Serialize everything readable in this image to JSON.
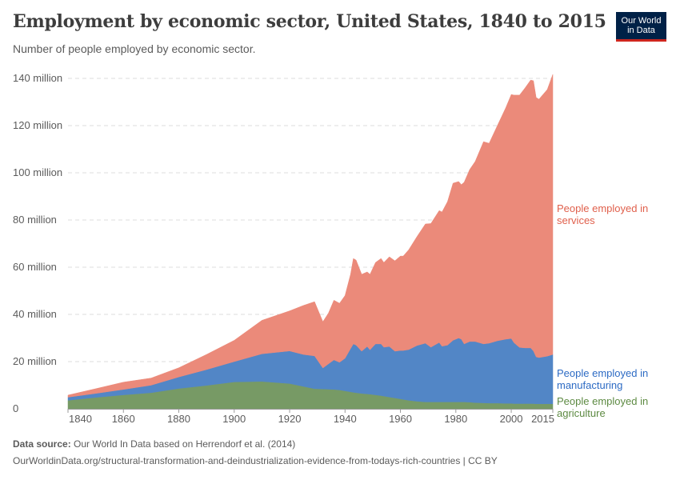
{
  "header": {
    "title": "Employment by economic sector, United States, 1840 to 2015",
    "subtitle": "Number of people employed by economic sector.",
    "logo_text": "Our World in Data"
  },
  "footer": {
    "source_label": "Data source:",
    "source_text": "Our World In Data based on Herrendorf et al. (2014)",
    "url_text": "OurWorldinData.org/structural-transformation-and-deindustrialization-evidence-from-todays-rich-countries | CC BY"
  },
  "chart_data": {
    "type": "area",
    "stacked": true,
    "title": "Employment by economic sector, United States, 1840 to 2015",
    "subtitle": "Number of people employed by economic sector.",
    "xlim": [
      1840,
      2015
    ],
    "ylim": [
      0,
      140000000
    ],
    "grid": "horizontal dashed",
    "legend": "right, inline labels",
    "x_ticks": [
      "1840",
      "1860",
      "1880",
      "1900",
      "1920",
      "1940",
      "1960",
      "1980",
      "2000",
      "2015"
    ],
    "y_ticks": [
      "0",
      "20 million",
      "40 million",
      "60 million",
      "80 million",
      "100 million",
      "120 million",
      "140 million"
    ],
    "x": [
      1840,
      1850,
      1860,
      1870,
      1880,
      1890,
      1900,
      1910,
      1920,
      1925,
      1929,
      1932,
      1934,
      1936,
      1938,
      1940,
      1942,
      1943,
      1944,
      1946,
      1948,
      1949,
      1951,
      1953,
      1954,
      1956,
      1958,
      1960,
      1961,
      1963,
      1966,
      1969,
      1971,
      1974,
      1975,
      1977,
      1979,
      1981,
      1982,
      1983,
      1985,
      1987,
      1990,
      1992,
      1995,
      1998,
      2000,
      2001,
      2003,
      2005,
      2007,
      2008,
      2009,
      2010,
      2013,
      2015
    ],
    "unit": "million people",
    "series": [
      {
        "name": "People employed in agriculture",
        "color": "#779a65",
        "label_color": "#5d8a42",
        "values": [
          3.6,
          4.8,
          5.9,
          6.8,
          8.6,
          9.9,
          11.4,
          11.6,
          10.7,
          9.5,
          8.5,
          8.4,
          8.3,
          8.2,
          8.0,
          7.6,
          7.2,
          7.0,
          6.8,
          6.5,
          6.3,
          6.2,
          5.9,
          5.6,
          5.4,
          5.0,
          4.6,
          4.2,
          4.0,
          3.6,
          3.2,
          2.9,
          2.9,
          2.9,
          2.9,
          2.9,
          2.9,
          2.9,
          2.9,
          2.9,
          2.8,
          2.6,
          2.5,
          2.4,
          2.4,
          2.3,
          2.3,
          2.2,
          2.2,
          2.2,
          2.2,
          2.2,
          2.1,
          2.1,
          2.1,
          2.1
        ]
      },
      {
        "name": "People employed in manufacturing",
        "color": "#5286c6",
        "label_color": "#2d6bc4",
        "values": [
          1.3,
          1.7,
          2.3,
          3.2,
          4.9,
          6.7,
          8.6,
          11.7,
          13.8,
          13.5,
          13.9,
          8.9,
          10.7,
          12.5,
          11.7,
          13.8,
          18.3,
          20.5,
          20.2,
          17.9,
          20.1,
          18.8,
          21.6,
          21.9,
          20.7,
          21.4,
          19.8,
          20.5,
          20.7,
          21.5,
          23.6,
          24.9,
          23.2,
          25.2,
          23.6,
          24.1,
          26.1,
          27.1,
          26.6,
          24.6,
          25.7,
          25.9,
          25.0,
          25.4,
          26.4,
          27.2,
          27.5,
          25.8,
          23.8,
          23.6,
          23.6,
          22.3,
          19.9,
          19.6,
          20.2,
          20.9
        ]
      },
      {
        "name": "People employed in services",
        "color": "#eb8a7a",
        "label_color": "#e0604c",
        "values": [
          0.9,
          2.0,
          3.1,
          3.0,
          3.9,
          6.4,
          9.0,
          14.2,
          17.0,
          20.8,
          23.0,
          19.6,
          21.5,
          25.3,
          25.0,
          26.6,
          31.5,
          36.2,
          36.0,
          32.6,
          31.6,
          32.0,
          34.5,
          36.2,
          35.9,
          38.0,
          38.3,
          40.0,
          40.0,
          42.3,
          46.2,
          50.5,
          52.4,
          55.9,
          56.9,
          60.8,
          66.6,
          66.3,
          65.5,
          68.5,
          72.9,
          76.3,
          85.7,
          84.7,
          91.2,
          98.0,
          103.4,
          104.9,
          106.9,
          110.2,
          113.5,
          114.5,
          109.9,
          109.5,
          113.0,
          118.7
        ]
      }
    ],
    "labels": {
      "services": [
        "People employed in",
        "services"
      ],
      "manufacturing": [
        "People employed in",
        "manufacturing"
      ],
      "agriculture": [
        "People employed in",
        "agriculture"
      ]
    }
  }
}
